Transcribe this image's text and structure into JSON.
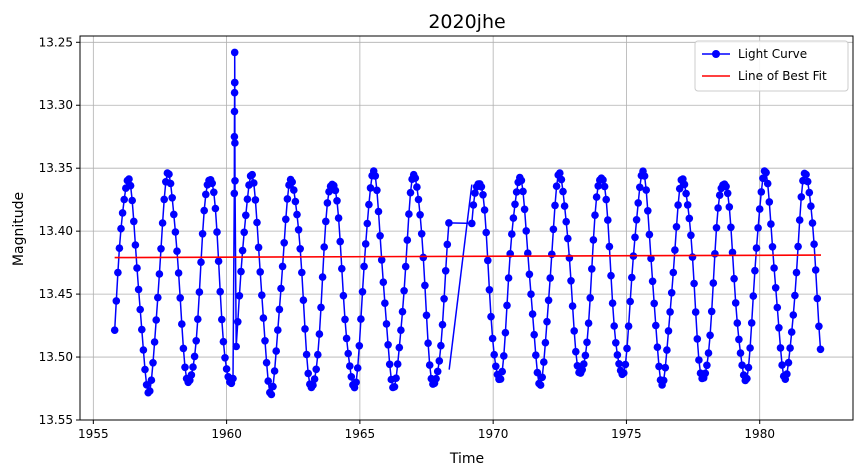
{
  "chart_data": {
    "type": "line",
    "title": "2020jhe",
    "xlabel": "Time",
    "ylabel": "Magnitude",
    "xlim": [
      1954.5,
      1983.5
    ],
    "ylim": [
      13.55,
      13.245
    ],
    "y_inverted": true,
    "grid": true,
    "legend_position": "top-right",
    "x_ticks": [
      1955,
      1960,
      1965,
      1970,
      1975,
      1980
    ],
    "x_tick_labels": [
      "1955",
      "1960",
      "1965",
      "1970",
      "1975",
      "1980"
    ],
    "y_ticks": [
      13.25,
      13.3,
      13.35,
      13.4,
      13.45,
      13.5,
      13.55
    ],
    "y_tick_labels": [
      "13.25",
      "13.30",
      "13.35",
      "13.40",
      "13.45",
      "13.50",
      "13.55"
    ],
    "series": [
      {
        "name": "Light Curve",
        "color": "#0000ff",
        "marker": "circle",
        "segments": [
          {
            "x_start": 1955.8,
            "x_end": 1968.35,
            "period": 1.535,
            "phase_x": 1956.3,
            "mean": 13.441,
            "amplitude": 0.083
          },
          {
            "x_start": 1969.2,
            "x_end": 1982.3,
            "period": 1.535,
            "phase_x": 1969.45,
            "mean": 13.437,
            "amplitude": 0.08
          }
        ],
        "spike": {
          "x": 1960.3,
          "peak": 13.258,
          "points": [
            13.37,
            13.325,
            13.305,
            13.29,
            13.282,
            13.258,
            13.282,
            13.33,
            13.36
          ]
        },
        "gap_line": [
          [
            1968.35,
            13.51
          ],
          [
            1969.2,
            13.363
          ]
        ]
      },
      {
        "name": "Line of Best Fit",
        "color": "#ff0000",
        "x": [
          1955.8,
          1982.3
        ],
        "y": [
          13.421,
          13.419
        ]
      }
    ]
  }
}
